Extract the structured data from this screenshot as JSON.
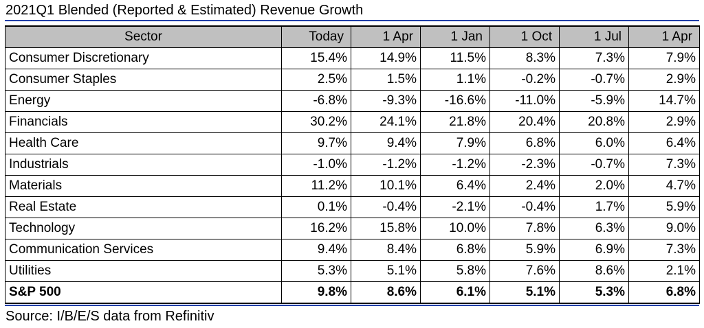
{
  "chart_data": {
    "type": "table",
    "title": "2021Q1 Blended (Reported & Estimated) Revenue Growth",
    "columns": [
      "Sector",
      "Today",
      "1 Apr",
      "1 Jan",
      "1 Oct",
      "1 Jul",
      "1 Apr"
    ],
    "rows": [
      {
        "sector": "Consumer Discretionary",
        "values": [
          "15.4%",
          "14.9%",
          "11.5%",
          "8.3%",
          "7.3%",
          "7.9%"
        ]
      },
      {
        "sector": "Consumer Staples",
        "values": [
          "2.5%",
          "1.5%",
          "1.1%",
          "-0.2%",
          "-0.7%",
          "2.9%"
        ]
      },
      {
        "sector": "Energy",
        "values": [
          "-6.8%",
          "-9.3%",
          "-16.6%",
          "-11.0%",
          "-5.9%",
          "14.7%"
        ]
      },
      {
        "sector": "Financials",
        "values": [
          "30.2%",
          "24.1%",
          "21.8%",
          "20.4%",
          "20.8%",
          "2.9%"
        ]
      },
      {
        "sector": "Health Care",
        "values": [
          "9.7%",
          "9.4%",
          "7.9%",
          "6.8%",
          "6.0%",
          "6.4%"
        ]
      },
      {
        "sector": "Industrials",
        "values": [
          "-1.0%",
          "-1.2%",
          "-1.2%",
          "-2.3%",
          "-0.7%",
          "7.3%"
        ]
      },
      {
        "sector": "Materials",
        "values": [
          "11.2%",
          "10.1%",
          "6.4%",
          "2.4%",
          "2.0%",
          "4.7%"
        ]
      },
      {
        "sector": "Real Estate",
        "values": [
          "0.1%",
          "-0.4%",
          "-2.1%",
          "-0.4%",
          "1.7%",
          "5.9%"
        ]
      },
      {
        "sector": "Technology",
        "values": [
          "16.2%",
          "15.8%",
          "10.0%",
          "7.8%",
          "6.3%",
          "9.0%"
        ]
      },
      {
        "sector": "Communication Services",
        "values": [
          "9.4%",
          "8.4%",
          "6.8%",
          "5.9%",
          "6.9%",
          "7.3%"
        ]
      },
      {
        "sector": "Utilities",
        "values": [
          "5.3%",
          "5.1%",
          "5.8%",
          "7.6%",
          "8.6%",
          "2.1%"
        ]
      }
    ],
    "total": {
      "sector": "S&P 500",
      "values": [
        "9.8%",
        "8.6%",
        "6.1%",
        "5.1%",
        "5.3%",
        "6.8%"
      ]
    },
    "source": "Source: I/B/E/S data from Refinitiv",
    "header_color": "#c0c0c0",
    "rule_color": "#1f3ea8"
  }
}
